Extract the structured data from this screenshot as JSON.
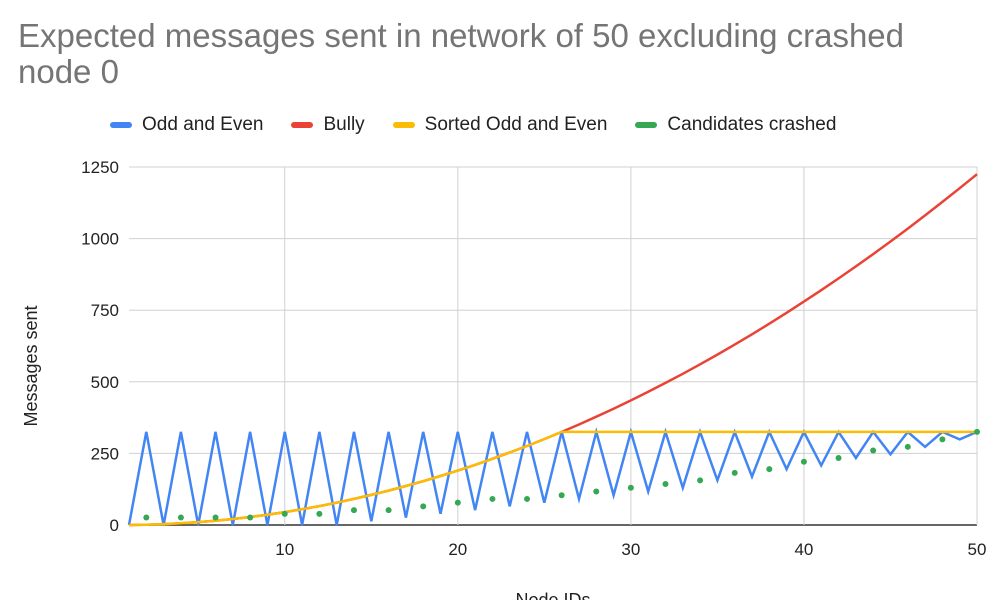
{
  "chart_data": {
    "type": "line",
    "title": "Expected messages sent in network of 50 excluding crashed node 0",
    "xlabel": "Node IDs",
    "ylabel": "Messages sent",
    "xlim": [
      1,
      50
    ],
    "ylim": [
      0,
      1250
    ],
    "xticks": [
      10,
      20,
      30,
      40,
      50
    ],
    "yticks": [
      0,
      250,
      500,
      750,
      1000,
      1250
    ],
    "grid": true,
    "legend_position": "top",
    "x": [
      1,
      2,
      3,
      4,
      5,
      6,
      7,
      8,
      9,
      10,
      11,
      12,
      13,
      14,
      15,
      16,
      17,
      18,
      19,
      20,
      21,
      22,
      23,
      24,
      25,
      26,
      27,
      28,
      29,
      30,
      31,
      32,
      33,
      34,
      35,
      36,
      37,
      38,
      39,
      40,
      41,
      42,
      43,
      44,
      45,
      46,
      47,
      48,
      49,
      50
    ],
    "series": [
      {
        "name": "Odd and Even",
        "color": "#4285f4",
        "style": "line",
        "values": [
          0,
          325,
          0,
          325,
          0,
          325,
          0,
          325,
          0,
          325,
          0,
          325,
          0,
          325,
          13,
          325,
          26,
          325,
          39,
          325,
          52,
          325,
          65,
          325,
          78,
          325,
          91,
          325,
          104,
          325,
          117,
          325,
          130,
          325,
          156,
          325,
          169,
          325,
          195,
          325,
          208,
          325,
          234,
          325,
          247,
          325,
          273,
          325,
          299,
          325
        ]
      },
      {
        "name": "Bully",
        "color": "#ea4335",
        "style": "line",
        "values": [
          0,
          1,
          3,
          6,
          10,
          15,
          21,
          28,
          36,
          45,
          55,
          66,
          78,
          91,
          105,
          120,
          136,
          153,
          171,
          190,
          210,
          231,
          253,
          276,
          300,
          325,
          351,
          378,
          406,
          435,
          465,
          496,
          528,
          561,
          595,
          630,
          666,
          703,
          741,
          780,
          820,
          861,
          903,
          946,
          990,
          1035,
          1081,
          1128,
          1176,
          1225
        ]
      },
      {
        "name": "Sorted Odd and Even",
        "color": "#fbbc04",
        "style": "line",
        "values": [
          0,
          1,
          3,
          6,
          10,
          15,
          21,
          28,
          36,
          45,
          55,
          66,
          78,
          91,
          105,
          120,
          136,
          153,
          171,
          190,
          210,
          231,
          253,
          276,
          300,
          325,
          325,
          325,
          325,
          325,
          325,
          325,
          325,
          325,
          325,
          325,
          325,
          325,
          325,
          325,
          325,
          325,
          325,
          325,
          325,
          325,
          325,
          325,
          325,
          325
        ]
      },
      {
        "name": "Candidates crashed",
        "color": "#34a853",
        "style": "dots",
        "x": [
          2,
          4,
          6,
          8,
          10,
          12,
          14,
          16,
          18,
          20,
          22,
          24,
          26,
          28,
          30,
          32,
          34,
          36,
          38,
          40,
          42,
          44,
          46,
          48,
          50
        ],
        "values": [
          26,
          26,
          26,
          26,
          39,
          39,
          52,
          52,
          65,
          78,
          91,
          91,
          104,
          117,
          130,
          143,
          156,
          182,
          195,
          221,
          234,
          260,
          273,
          299,
          325
        ]
      }
    ]
  }
}
